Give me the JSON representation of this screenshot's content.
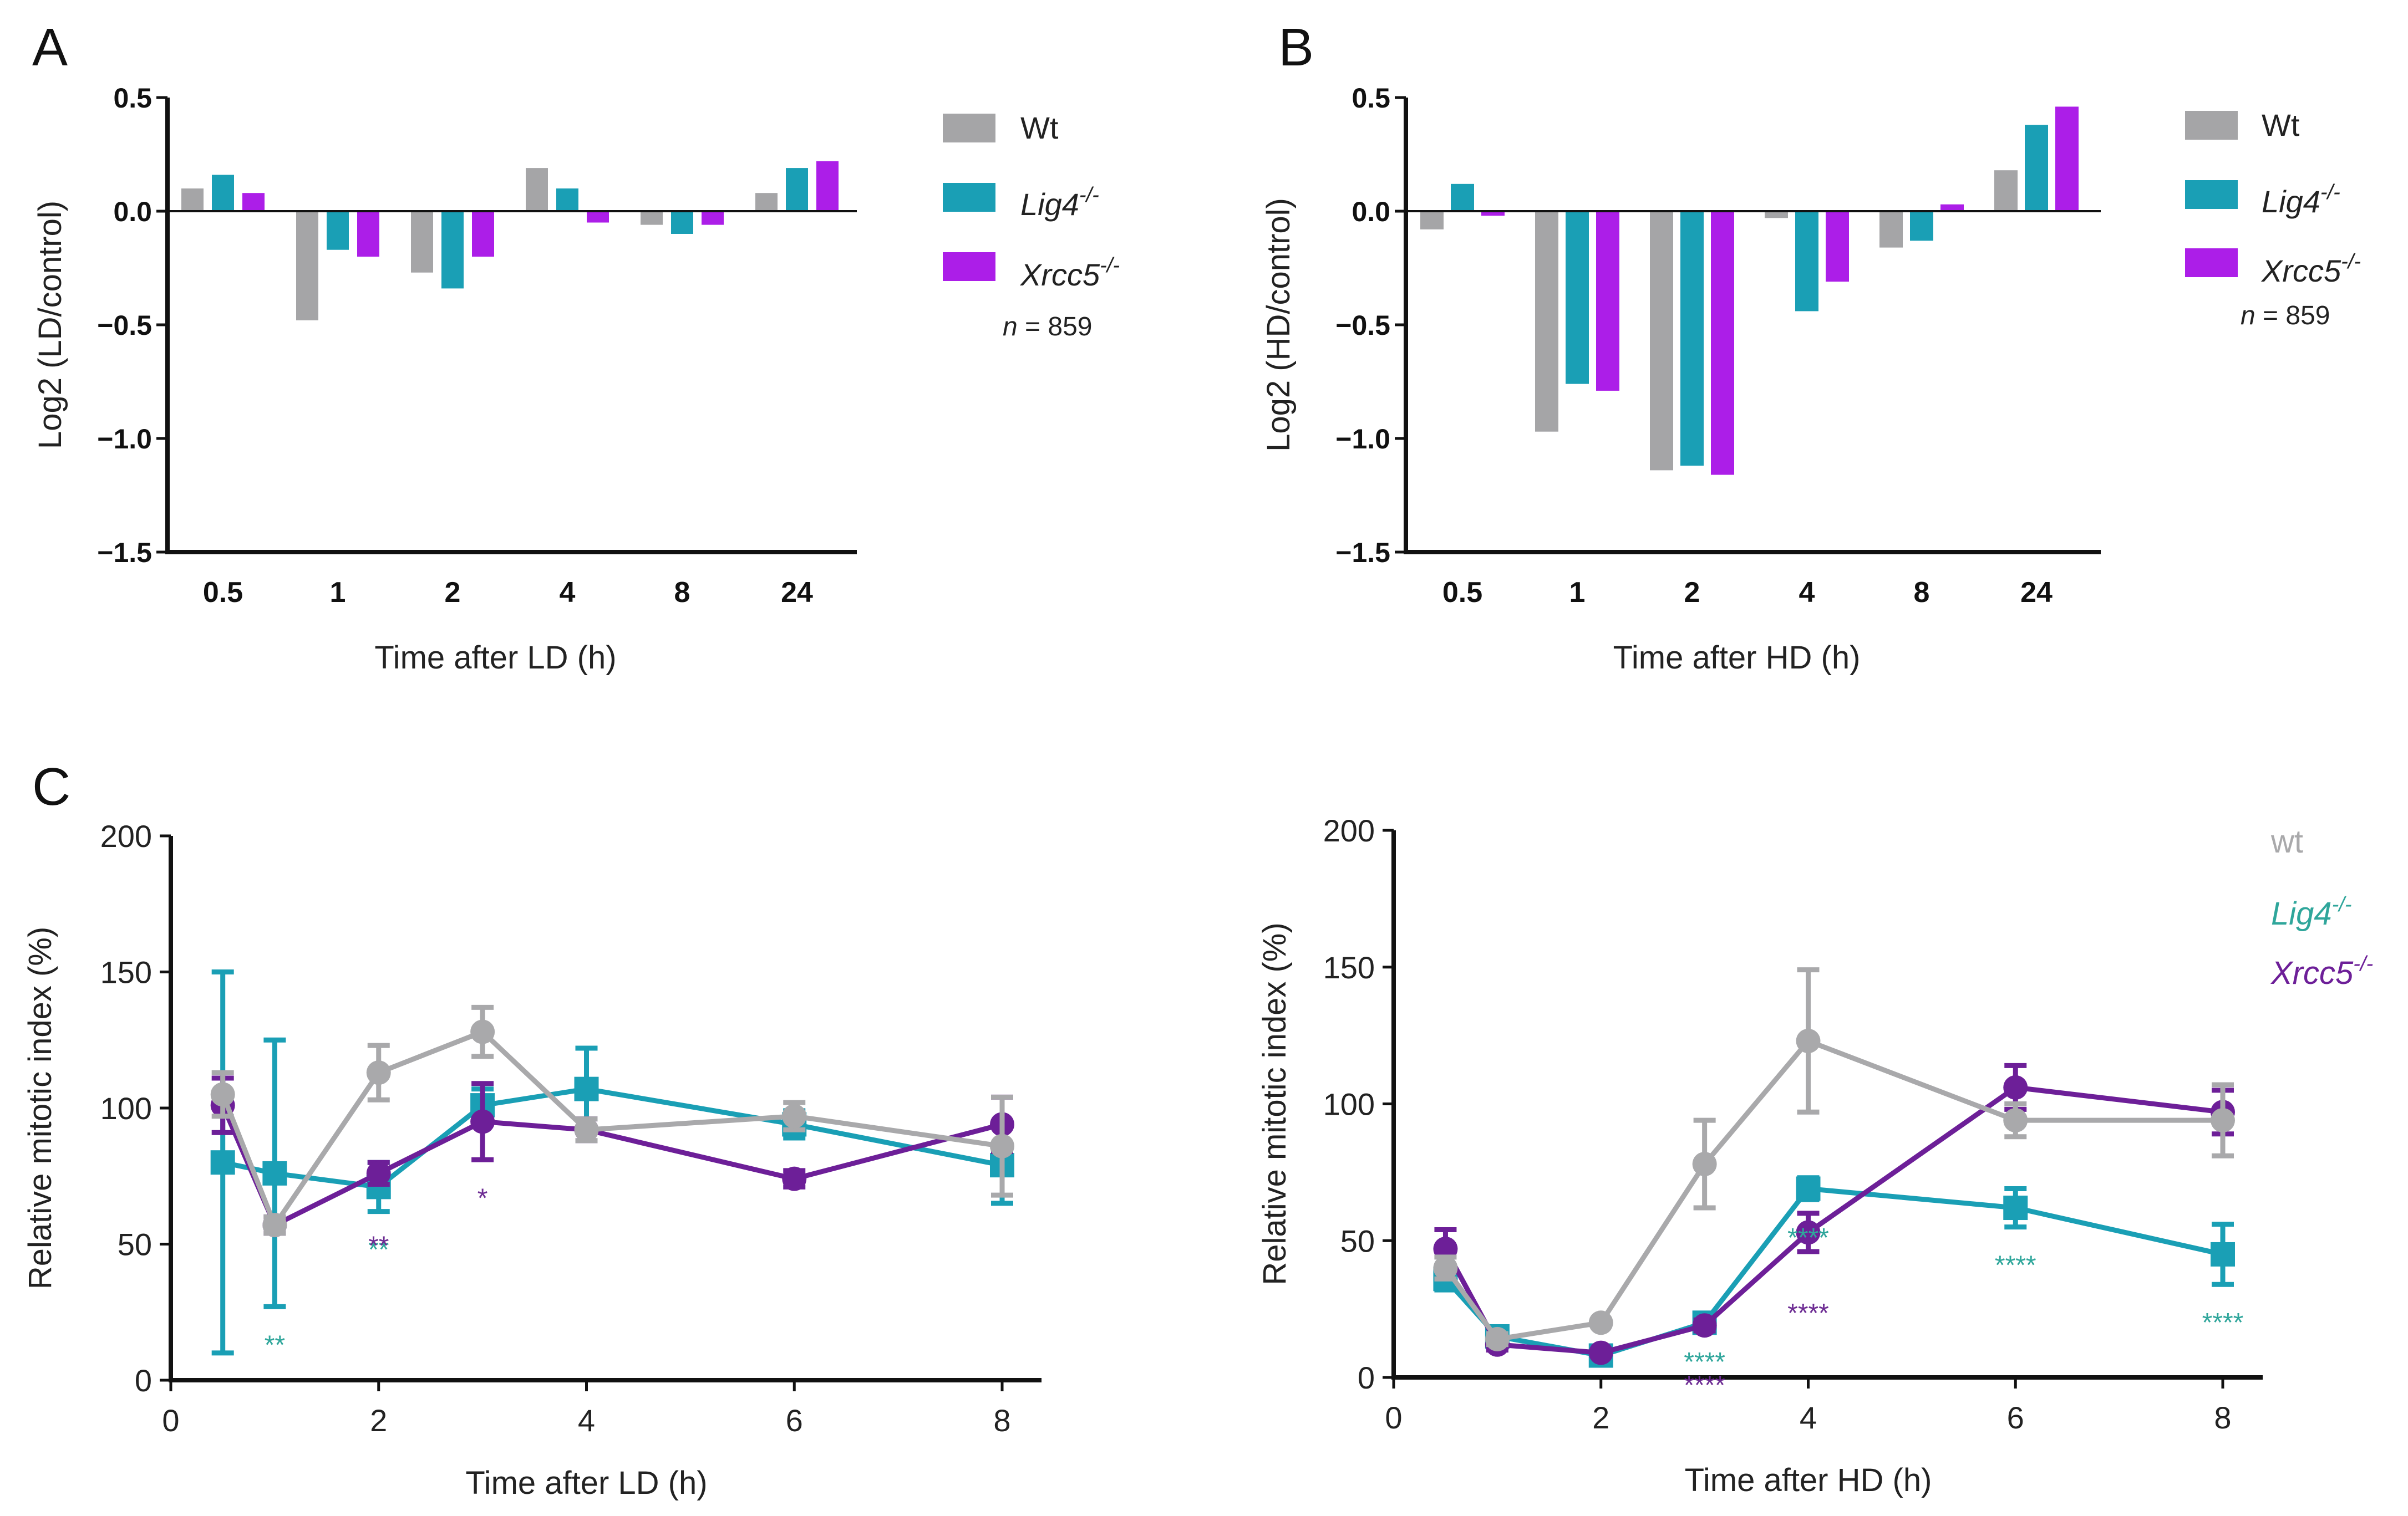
{
  "panel_labels": {
    "A": "A",
    "B": "B",
    "C": "C"
  },
  "legend_ab": {
    "entries": [
      {
        "label": "Wt",
        "sup": ""
      },
      {
        "label": "Lig4",
        "sup": "-/-"
      },
      {
        "label": "Xrcc5",
        "sup": "-/-"
      }
    ],
    "n_prefix": "n",
    "n_value": " = 859"
  },
  "legend_c": {
    "entries": [
      {
        "label": "wt",
        "sup": ""
      },
      {
        "label": "Lig4",
        "sup": "-/-"
      },
      {
        "label": "Xrcc5",
        "sup": "-/-"
      }
    ]
  },
  "colors": {
    "wt_bar": "#a5a5a7",
    "lig4": "#1a9fb5",
    "xrcc5": "#ac1ee8",
    "wt_line": "#a9a9ab",
    "xrcc5_line": "#6d1f98",
    "lig4_star": "#2fa69b",
    "xrcc5_star": "#6d2c93"
  },
  "chart_data": [
    {
      "id": "A",
      "type": "bar",
      "categories": [
        "0.5",
        "1",
        "2",
        "4",
        "8",
        "24"
      ],
      "series": [
        {
          "name": "Wt",
          "values": [
            0.1,
            -0.48,
            -0.27,
            0.19,
            -0.06,
            0.08
          ]
        },
        {
          "name": "Lig4-/-",
          "values": [
            0.16,
            -0.17,
            -0.34,
            0.1,
            -0.1,
            0.19
          ]
        },
        {
          "name": "Xrcc5-/-",
          "values": [
            0.08,
            -0.2,
            -0.2,
            -0.05,
            -0.06,
            0.22
          ]
        }
      ],
      "xlabel": "Time after LD (h)",
      "ylabel": "Log2 (LD/control)",
      "ylim": [
        -1.5,
        0.5
      ],
      "yticks": [
        "0.5",
        "0.0",
        "−0.5",
        "−1.0",
        "−1.5"
      ],
      "ytick_values": [
        0.5,
        0.0,
        -0.5,
        -1.0,
        -1.5
      ]
    },
    {
      "id": "B",
      "type": "bar",
      "categories": [
        "0.5",
        "1",
        "2",
        "4",
        "8",
        "24"
      ],
      "series": [
        {
          "name": "Wt",
          "values": [
            -0.08,
            -0.97,
            -1.14,
            -0.03,
            -0.16,
            0.18
          ]
        },
        {
          "name": "Lig4-/-",
          "values": [
            0.12,
            -0.76,
            -1.12,
            -0.44,
            -0.13,
            0.38
          ]
        },
        {
          "name": "Xrcc5-/-",
          "values": [
            -0.02,
            -0.79,
            -1.16,
            -0.31,
            0.03,
            0.46
          ]
        }
      ],
      "xlabel": "Time after HD (h)",
      "ylabel": "Log2 (HD/control)",
      "ylim": [
        -1.5,
        0.5
      ],
      "yticks": [
        "0.5",
        "0.0",
        "−0.5",
        "−1.0",
        "−1.5"
      ],
      "ytick_values": [
        0.5,
        0.0,
        -0.5,
        -1.0,
        -1.5
      ]
    },
    {
      "id": "C-left",
      "type": "line",
      "xlabel": "Time after LD (h)",
      "ylabel": "Relative mitotic index (%)",
      "xlim": [
        0,
        8
      ],
      "ylim": [
        0,
        200
      ],
      "xticks": [
        0,
        2,
        4,
        6,
        8
      ],
      "yticks": [
        0,
        50,
        100,
        150,
        200
      ],
      "series": [
        {
          "name": "wt",
          "marker": "circle",
          "x": [
            0.5,
            1,
            2,
            3,
            4,
            6,
            8
          ],
          "y": [
            105,
            57,
            113,
            128,
            92,
            97,
            86
          ],
          "err": [
            8,
            3,
            10,
            9,
            4,
            5,
            18
          ]
        },
        {
          "name": "Lig4-/-",
          "marker": "square",
          "x": [
            0.5,
            1,
            2,
            3,
            4,
            6,
            8
          ],
          "y": [
            80,
            76,
            71,
            101,
            107,
            94,
            79
          ],
          "err": [
            70,
            49,
            9,
            6,
            15,
            5,
            14
          ]
        },
        {
          "name": "Xrcc5-/-",
          "marker": "circle",
          "x": [
            0.5,
            1,
            2,
            3,
            4,
            6,
            8
          ],
          "y": [
            101,
            57,
            76,
            95,
            92,
            74,
            94
          ],
          "err": [
            10,
            3,
            4,
            14,
            4,
            3,
            10
          ]
        }
      ],
      "annotations": [
        {
          "x": 1,
          "text": "**",
          "series": "Lig4-/-",
          "row": 0
        },
        {
          "x": 2,
          "text": "**",
          "series": "Lig4-/-",
          "row": 0
        },
        {
          "x": 2,
          "text": "**",
          "series": "Xrcc5-/-",
          "row": 1
        },
        {
          "x": 3,
          "text": "*",
          "series": "Xrcc5-/-",
          "row": 0
        }
      ]
    },
    {
      "id": "C-right",
      "type": "line",
      "xlabel": "Time after HD (h)",
      "ylabel": "Relative mitotic index (%)",
      "xlim": [
        0,
        8
      ],
      "ylim": [
        0,
        200
      ],
      "xticks": [
        0,
        2,
        4,
        6,
        8
      ],
      "yticks": [
        0,
        50,
        100,
        150,
        200
      ],
      "series": [
        {
          "name": "wt",
          "marker": "circle",
          "x": [
            0.5,
            1,
            2,
            3,
            4,
            6,
            8
          ],
          "y": [
            40,
            14,
            20,
            78,
            123,
            94,
            94
          ],
          "err": [
            4,
            2,
            1,
            16,
            26,
            6,
            13
          ]
        },
        {
          "name": "Lig4-/-",
          "marker": "square",
          "x": [
            0.5,
            1,
            2,
            3,
            4,
            6,
            8
          ],
          "y": [
            36,
            15,
            8,
            20,
            69,
            62,
            45
          ],
          "err": [
            4,
            2,
            1,
            2,
            4,
            7,
            11
          ]
        },
        {
          "name": "Xrcc5-/-",
          "marker": "circle",
          "x": [
            0.5,
            1,
            2,
            3,
            4,
            6,
            8
          ],
          "y": [
            47,
            12,
            9,
            19,
            53,
            106,
            97
          ],
          "err": [
            7,
            2,
            1,
            2,
            7,
            8,
            8
          ]
        }
      ],
      "annotations": [
        {
          "x": 3,
          "text": "****",
          "series": "Lig4-/-",
          "row": 0
        },
        {
          "x": 3,
          "text": "****",
          "series": "Xrcc5-/-",
          "row": 1
        },
        {
          "x": 4,
          "text": "****",
          "series": "Lig4-/-",
          "row": 0
        },
        {
          "x": 4,
          "text": "****",
          "series": "Xrcc5-/-",
          "row": 1
        },
        {
          "x": 6,
          "text": "****",
          "series": "Lig4-/-",
          "row": 0
        },
        {
          "x": 8,
          "text": "****",
          "series": "Lig4-/-",
          "row": 0
        }
      ]
    }
  ]
}
